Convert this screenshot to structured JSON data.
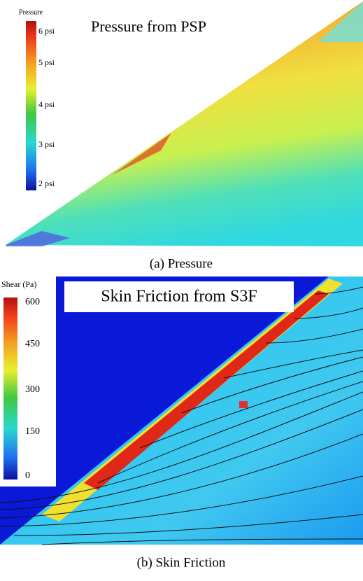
{
  "panels": [
    {
      "title": "Pressure from PSP",
      "colorbar_title": "Pressure",
      "colorbar_labels": [
        "6 psi",
        "5 psi",
        "4 psi",
        "3 psi",
        "2 psi"
      ],
      "caption": "(a) Pressure"
    },
    {
      "title": "Skin Friction from S3F",
      "colorbar_title": "Shear (Pa)",
      "colorbar_labels": [
        "600",
        "450",
        "300",
        "150",
        "0"
      ],
      "caption": "(b) Skin Friction"
    }
  ]
}
